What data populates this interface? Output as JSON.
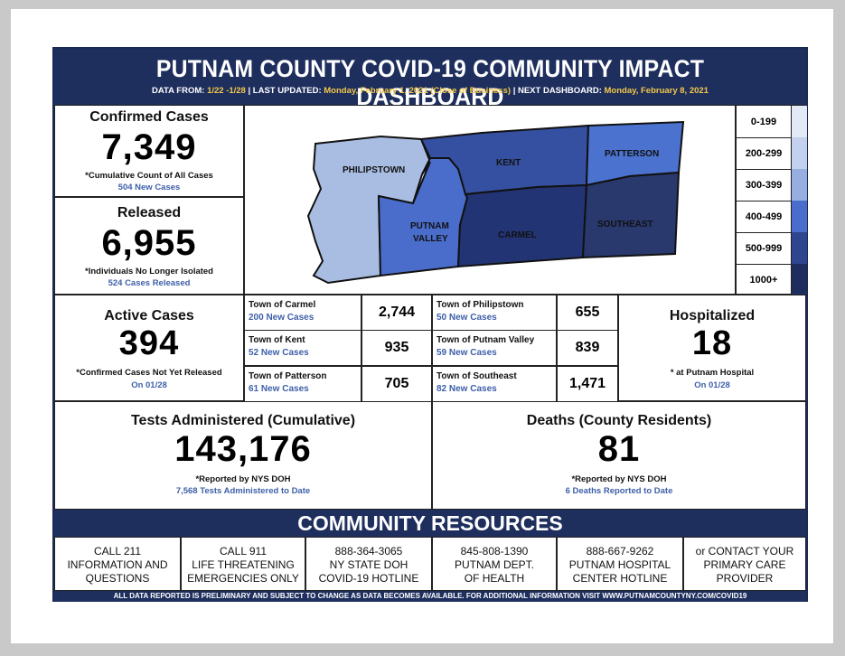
{
  "header": {
    "title": "PUTNAM COUNTY COVID-19 COMMUNITY IMPACT DASHBOARD",
    "data_from_label": "DATA FROM:",
    "data_from_value": "1/22 -1/28",
    "last_updated_label": "| LAST UPDATED:",
    "last_updated_value": "Monday, February 1, 2021 (Close of Business)",
    "next_label": "| NEXT DASHBOARD:",
    "next_value": "Monday, February 8, 2021"
  },
  "confirmed": {
    "label": "Confirmed Cases",
    "value": "7,349",
    "note": "*Cumulative Count of All Cases",
    "sub": "504 New Cases"
  },
  "released": {
    "label": "Released",
    "value": "6,955",
    "note": "*Individuals No Longer Isolated",
    "sub": "524 Cases Released"
  },
  "map": {
    "towns": [
      {
        "name": "PHILIPSTOWN",
        "color": "#a9bde3"
      },
      {
        "name": "KENT",
        "color": "#3550a0"
      },
      {
        "name": "PATTERSON",
        "color": "#4b72cf"
      },
      {
        "name": "PUTNAM",
        "name2": "VALLEY",
        "color": "#4a6ccb"
      },
      {
        "name": "CARMEL",
        "color": "#233474"
      },
      {
        "name": "SOUTHEAST",
        "color": "#29386d"
      }
    ]
  },
  "legend": [
    {
      "label": "0-199",
      "color": "#e3e9f6"
    },
    {
      "label": "200-299",
      "color": "#c3d0ee"
    },
    {
      "label": "300-399",
      "color": "#97aee0"
    },
    {
      "label": "400-499",
      "color": "#4a6ccb"
    },
    {
      "label": "500-999",
      "color": "#2e4590"
    },
    {
      "label": "1000+",
      "color": "#1f2d5e"
    }
  ],
  "active": {
    "label": "Active Cases",
    "value": "394",
    "note": "*Confirmed Cases Not Yet Released",
    "sub": "On 01/28"
  },
  "towns_table": [
    {
      "name": "Town of Carmel",
      "new": "200 New Cases",
      "value": "2,744"
    },
    {
      "name": "Town of Philipstown",
      "new": "50 New Cases",
      "value": "655"
    },
    {
      "name": "Town of Kent",
      "new": "52 New Cases",
      "value": "935"
    },
    {
      "name": "Town of Putnam Valley",
      "new": "59 New Cases",
      "value": "839"
    },
    {
      "name": "Town of Patterson",
      "new": "61 New Cases",
      "value": "705"
    },
    {
      "name": "Town of Southeast",
      "new": "82 New Cases",
      "value": "1,471"
    }
  ],
  "hospitalized": {
    "label": "Hospitalized",
    "value": "18",
    "note": "* at Putnam Hospital",
    "sub": "On 01/28"
  },
  "tests": {
    "label": "Tests Administered (Cumulative)",
    "value": "143,176",
    "note": "*Reported by NYS DOH",
    "sub": "7,568 Tests Administered to Date"
  },
  "deaths": {
    "label": "Deaths (County Residents)",
    "value": "81",
    "note": "*Reported by NYS DOH",
    "sub": "6 Deaths Reported to Date"
  },
  "resources": {
    "title": "COMMUNITY RESOURCES",
    "items": [
      {
        "line1": "CALL 211",
        "line2": "INFORMATION AND",
        "line3": "QUESTIONS"
      },
      {
        "line1": "CALL 911",
        "line2": "LIFE THREATENING",
        "line3": "EMERGENCIES ONLY"
      },
      {
        "line1": "888-364-3065",
        "line2": "NY STATE DOH",
        "line3": "COVID-19 HOTLINE"
      },
      {
        "line1": "845-808-1390",
        "line2": "PUTNAM DEPT.",
        "line3": "OF HEALTH"
      },
      {
        "line1": "888-667-9262",
        "line2": "PUTNAM HOSPITAL",
        "line3": "CENTER HOTLINE"
      },
      {
        "line1": "or CONTACT YOUR",
        "line2": "PRIMARY CARE",
        "line3": "PROVIDER"
      }
    ]
  },
  "footer": "ALL DATA REPORTED IS PRELIMINARY AND SUBJECT TO CHANGE AS DATA BECOMES AVAILABLE. FOR ADDITIONAL INFORMATION VISIT WWW.PUTNAMCOUNTYNY.COM/COVID19"
}
